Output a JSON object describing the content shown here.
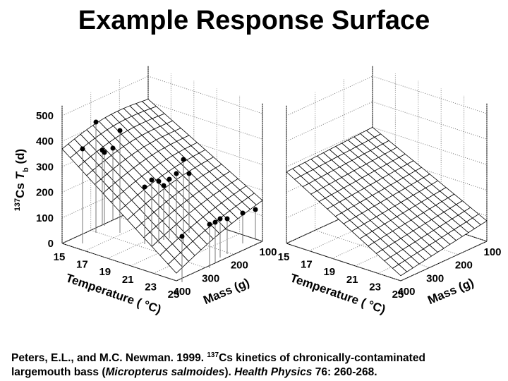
{
  "title": "Example Response Surface",
  "plots": [
    {
      "z_label": {
        "sup": "137",
        "element": "Cs ",
        "symbol": "T",
        "sub": "b",
        "unit": " (d)"
      },
      "z_ticks": [
        0,
        100,
        200,
        300,
        400,
        500
      ],
      "temperature_ticks": [
        15,
        17,
        19,
        21,
        23,
        25
      ],
      "mass_ticks": [
        100,
        200,
        300,
        400
      ],
      "temperature_label": "Temperature ( °C)",
      "mass_label": "Mass (g)"
    },
    {
      "temperature_ticks": [
        15,
        17,
        19,
        21,
        23,
        25
      ],
      "mass_ticks": [
        100,
        200,
        300,
        400
      ],
      "temperature_label": "Temperature ( °C)",
      "mass_label": "Mass (g)"
    }
  ],
  "citation": {
    "part1": "Peters, E.L., and M.C. Newman. 1999. ",
    "sup": "137",
    "part2": "Cs kinetics of chronically-contaminated",
    "part3": "largemouth bass (",
    "species": "Micropterus salmoides",
    "part4": "). ",
    "journal": "Health Physics",
    "part5": " 76: 260-268."
  }
}
